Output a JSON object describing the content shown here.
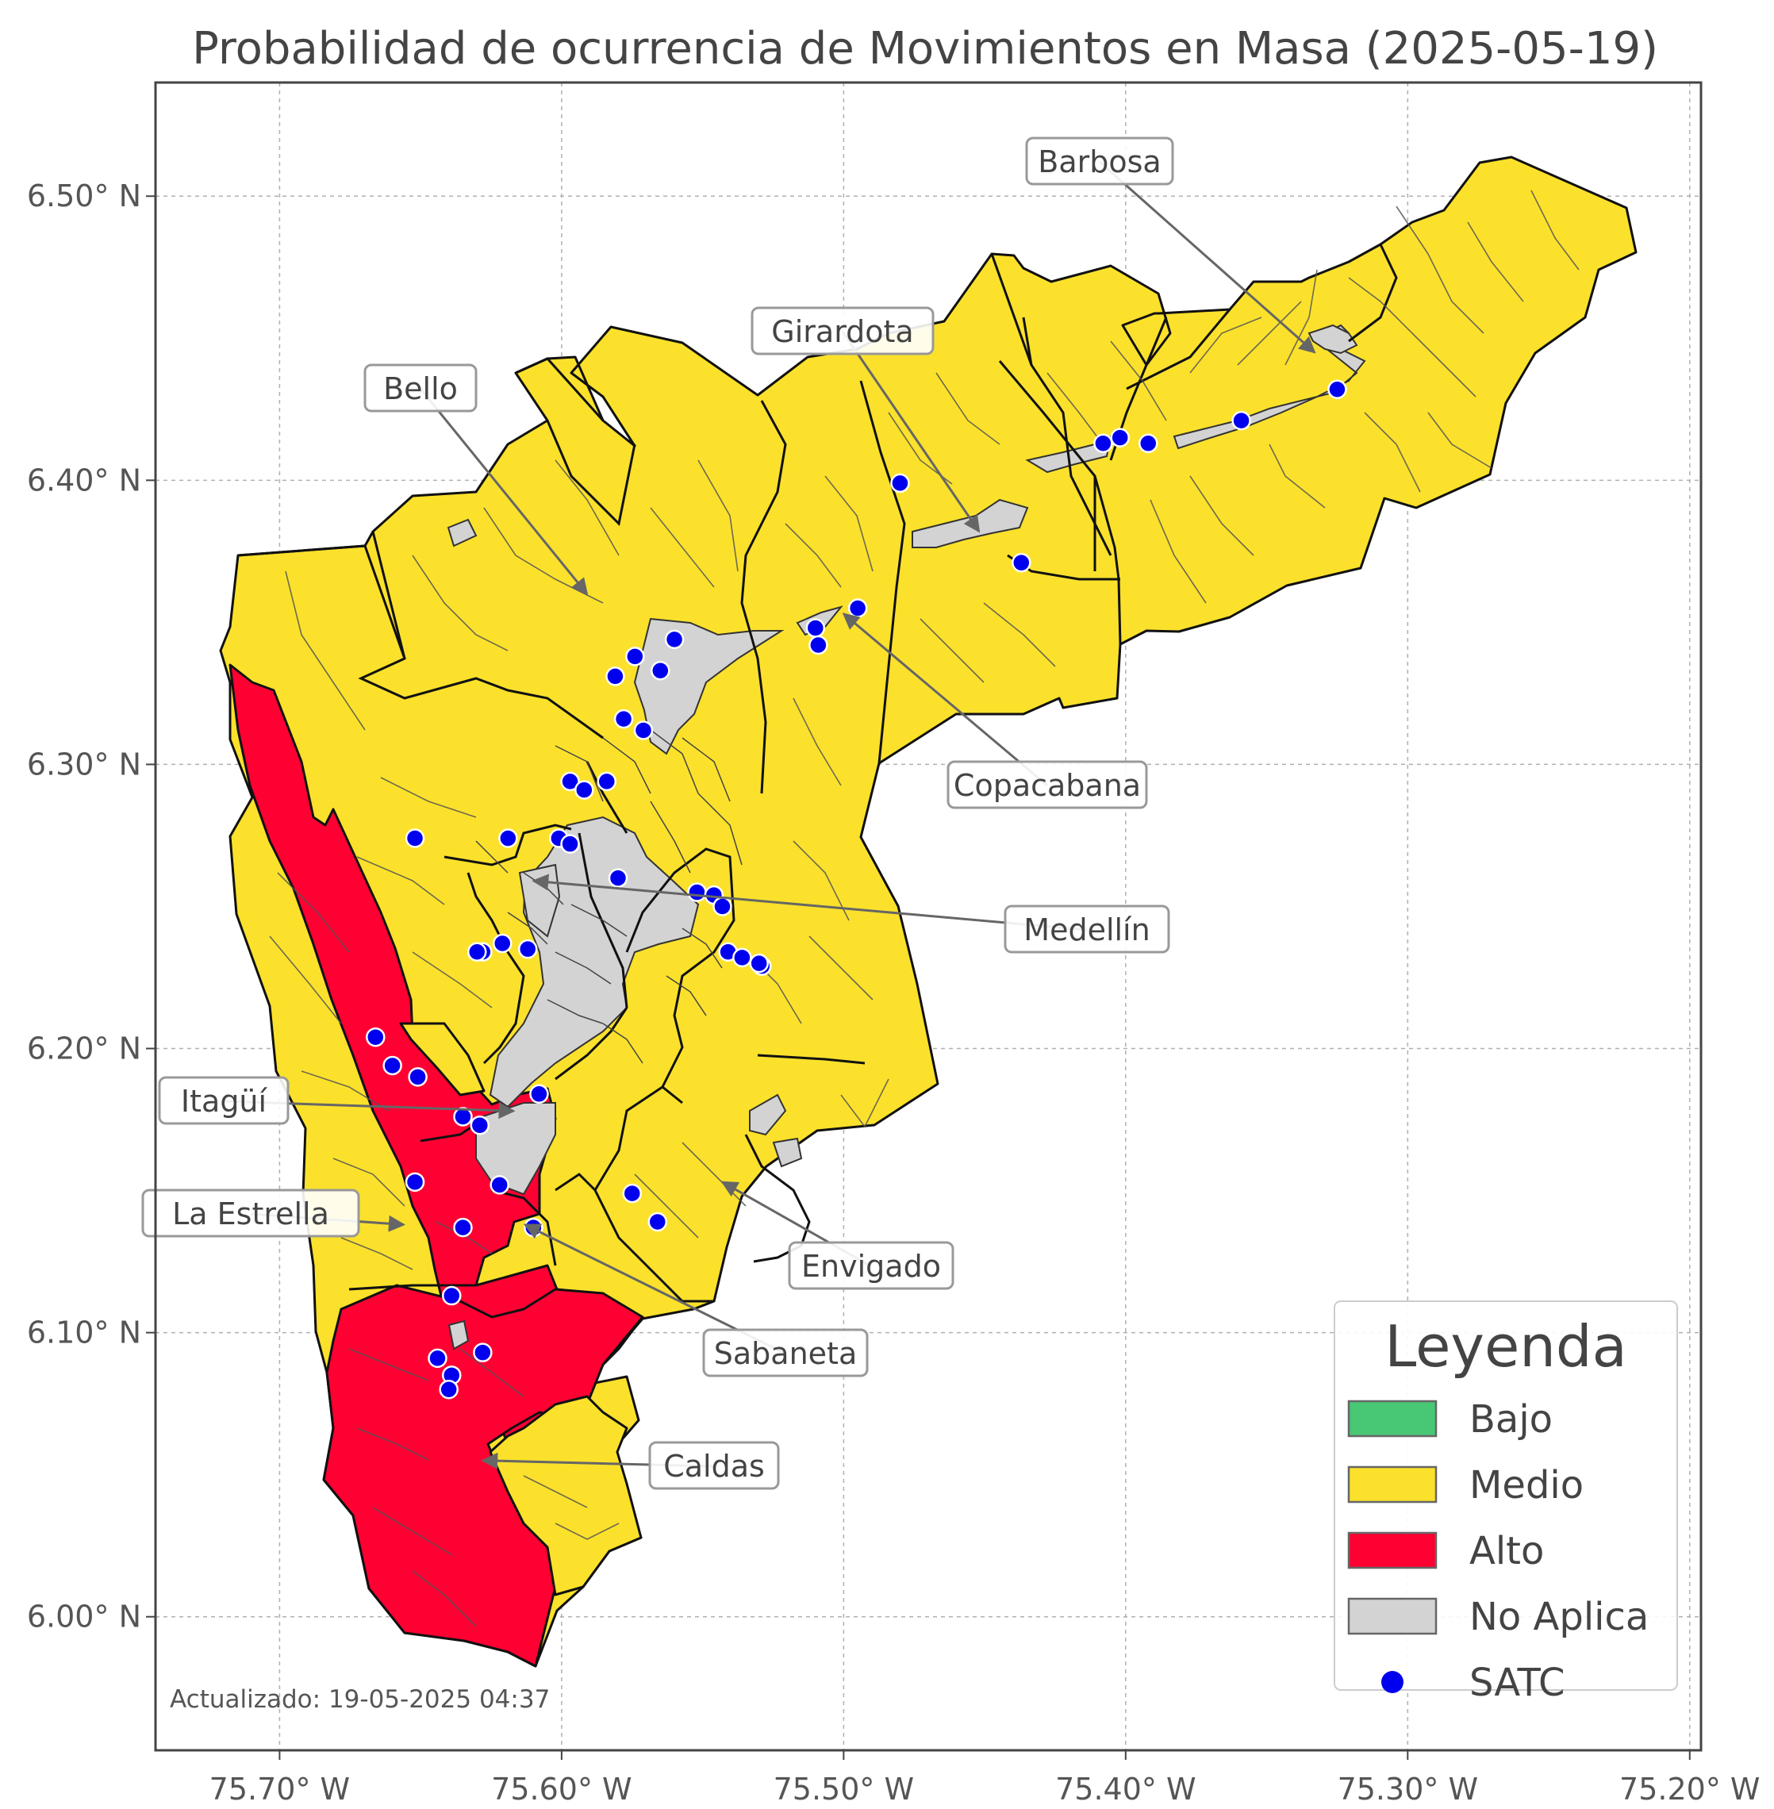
{
  "title": "Probabilidad de ocurrencia de Movimientos en Masa (2025-05-19)",
  "axes": {
    "x_ticks": [
      "75.70° W",
      "75.60° W",
      "75.50° W",
      "75.40° W",
      "75.30° W",
      "75.20° W"
    ],
    "y_ticks": [
      "6.50° N",
      "6.40° N",
      "6.30° N",
      "6.20° N",
      "6.10° N",
      "6.00° N"
    ],
    "x_range": [
      -75.744,
      -75.196
    ],
    "y_range": [
      5.953,
      6.54
    ],
    "grid": true
  },
  "colors": {
    "bajo": "#48c774",
    "medio": "#fbe12b",
    "alto": "#ff0033",
    "no_aplica": "#d3d3d3",
    "satc": "#0000ee"
  },
  "municipalities": [
    {
      "name": "Barbosa",
      "anchor": [
        -75.333,
        6.445
      ]
    },
    {
      "name": "Girardota",
      "anchor": [
        -75.452,
        6.382
      ]
    },
    {
      "name": "Bello",
      "anchor": [
        -75.591,
        6.36
      ]
    },
    {
      "name": "Copacabana",
      "anchor": [
        -75.5,
        6.353
      ]
    },
    {
      "name": "Medellín",
      "anchor": [
        -75.61,
        6.259
      ]
    },
    {
      "name": "Itagüí",
      "anchor": [
        -75.617,
        6.178
      ]
    },
    {
      "name": "La Estrella",
      "anchor": [
        -75.656,
        6.138
      ]
    },
    {
      "name": "Envigado",
      "anchor": [
        -75.543,
        6.153
      ]
    },
    {
      "name": "Sabaneta",
      "anchor": [
        -75.613,
        6.138
      ]
    },
    {
      "name": "Caldas",
      "anchor": [
        -75.628,
        6.055
      ]
    }
  ],
  "satc_stations": [
    [
      -75.325,
      6.432
    ],
    [
      -75.359,
      6.421
    ],
    [
      -75.392,
      6.413
    ],
    [
      -75.402,
      6.415
    ],
    [
      -75.408,
      6.413
    ],
    [
      -75.48,
      6.399
    ],
    [
      -75.437,
      6.371
    ],
    [
      -75.495,
      6.355
    ],
    [
      -75.51,
      6.348
    ],
    [
      -75.509,
      6.342
    ],
    [
      -75.56,
      6.344
    ],
    [
      -75.565,
      6.333
    ],
    [
      -75.574,
      6.338
    ],
    [
      -75.581,
      6.331
    ],
    [
      -75.578,
      6.316
    ],
    [
      -75.571,
      6.312
    ],
    [
      -75.597,
      6.294
    ],
    [
      -75.592,
      6.291
    ],
    [
      -75.584,
      6.294
    ],
    [
      -75.652,
      6.274
    ],
    [
      -75.619,
      6.274
    ],
    [
      -75.601,
      6.274
    ],
    [
      -75.597,
      6.272
    ],
    [
      -75.58,
      6.26
    ],
    [
      -75.552,
      6.255
    ],
    [
      -75.546,
      6.254
    ],
    [
      -75.543,
      6.25
    ],
    [
      -75.541,
      6.234
    ],
    [
      -75.536,
      6.232
    ],
    [
      -75.529,
      6.229
    ],
    [
      -75.53,
      6.23
    ],
    [
      -75.621,
      6.237
    ],
    [
      -75.612,
      6.235
    ],
    [
      -75.628,
      6.234
    ],
    [
      -75.63,
      6.234
    ],
    [
      -75.666,
      6.204
    ],
    [
      -75.66,
      6.194
    ],
    [
      -75.651,
      6.19
    ],
    [
      -75.608,
      6.184
    ],
    [
      -75.635,
      6.176
    ],
    [
      -75.629,
      6.173
    ],
    [
      -75.652,
      6.153
    ],
    [
      -75.622,
      6.152
    ],
    [
      -75.575,
      6.149
    ],
    [
      -75.566,
      6.139
    ],
    [
      -75.61,
      6.137
    ],
    [
      -75.635,
      6.137
    ],
    [
      -75.639,
      6.113
    ],
    [
      -75.644,
      6.091
    ],
    [
      -75.628,
      6.093
    ],
    [
      -75.639,
      6.085
    ],
    [
      -75.64,
      6.08
    ]
  ],
  "updated": "Actualizado: 19-05-2025 04:37",
  "legend": {
    "title": "Leyenda",
    "items": [
      {
        "label": "Bajo",
        "type": "patch",
        "color": "#48c774"
      },
      {
        "label": "Medio",
        "type": "patch",
        "color": "#fbe12b"
      },
      {
        "label": "Alto",
        "type": "patch",
        "color": "#ff0033"
      },
      {
        "label": "No Aplica",
        "type": "patch",
        "color": "#d3d3d3"
      },
      {
        "label": "SATC",
        "type": "marker",
        "color": "#0000ee"
      }
    ]
  }
}
